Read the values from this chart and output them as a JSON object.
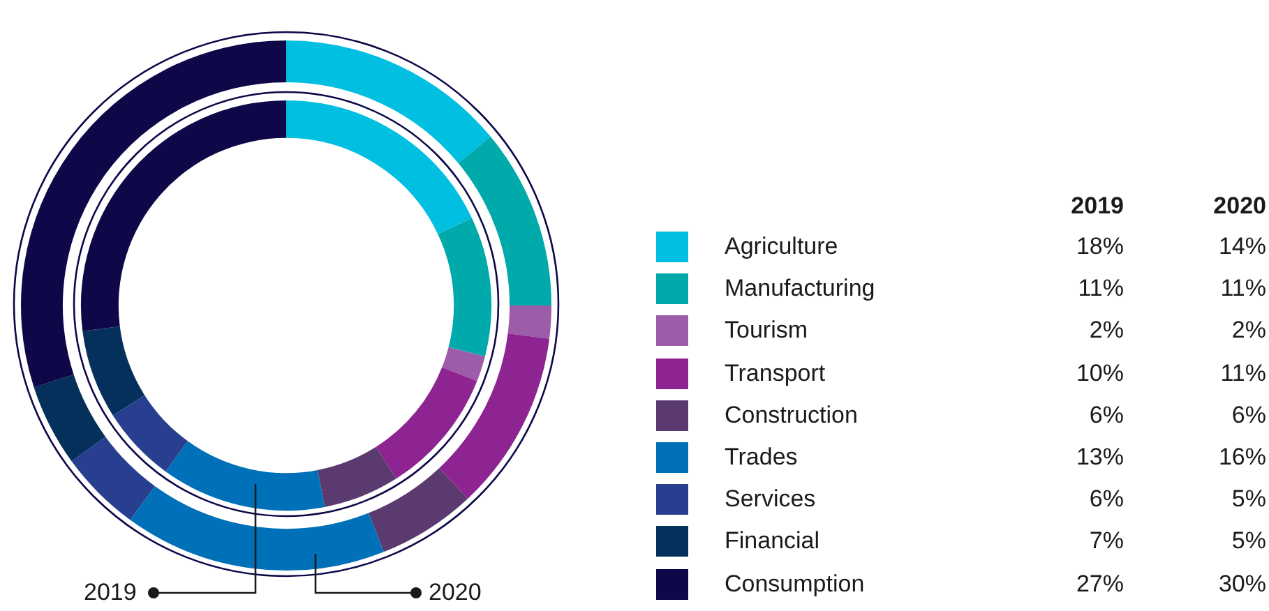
{
  "chart_data": {
    "type": "donut",
    "categories": [
      "Agriculture",
      "Manufacturing",
      "Tourism",
      "Transport",
      "Construction",
      "Trades",
      "Services",
      "Financial",
      "Consumption"
    ],
    "colors": [
      "#00bfe0",
      "#00a9aa",
      "#9d5ca8",
      "#8e2491",
      "#5b3a6f",
      "#0070b9",
      "#283f8f",
      "#05305c",
      "#0e0849"
    ],
    "series": [
      {
        "name": "2019",
        "values": [
          18,
          11,
          2,
          10,
          6,
          13,
          6,
          7,
          27
        ],
        "value_labels": [
          "18%",
          "11%",
          "2%",
          "10%",
          "6%",
          "13%",
          "6%",
          "7%",
          "27%"
        ]
      },
      {
        "name": "2020",
        "values": [
          14,
          11,
          2,
          11,
          6,
          16,
          5,
          5,
          30
        ],
        "value_labels": [
          "14%",
          "11%",
          "2%",
          "11%",
          "6%",
          "16%",
          "5%",
          "5%",
          "30%"
        ]
      }
    ],
    "legend": "right"
  }
}
